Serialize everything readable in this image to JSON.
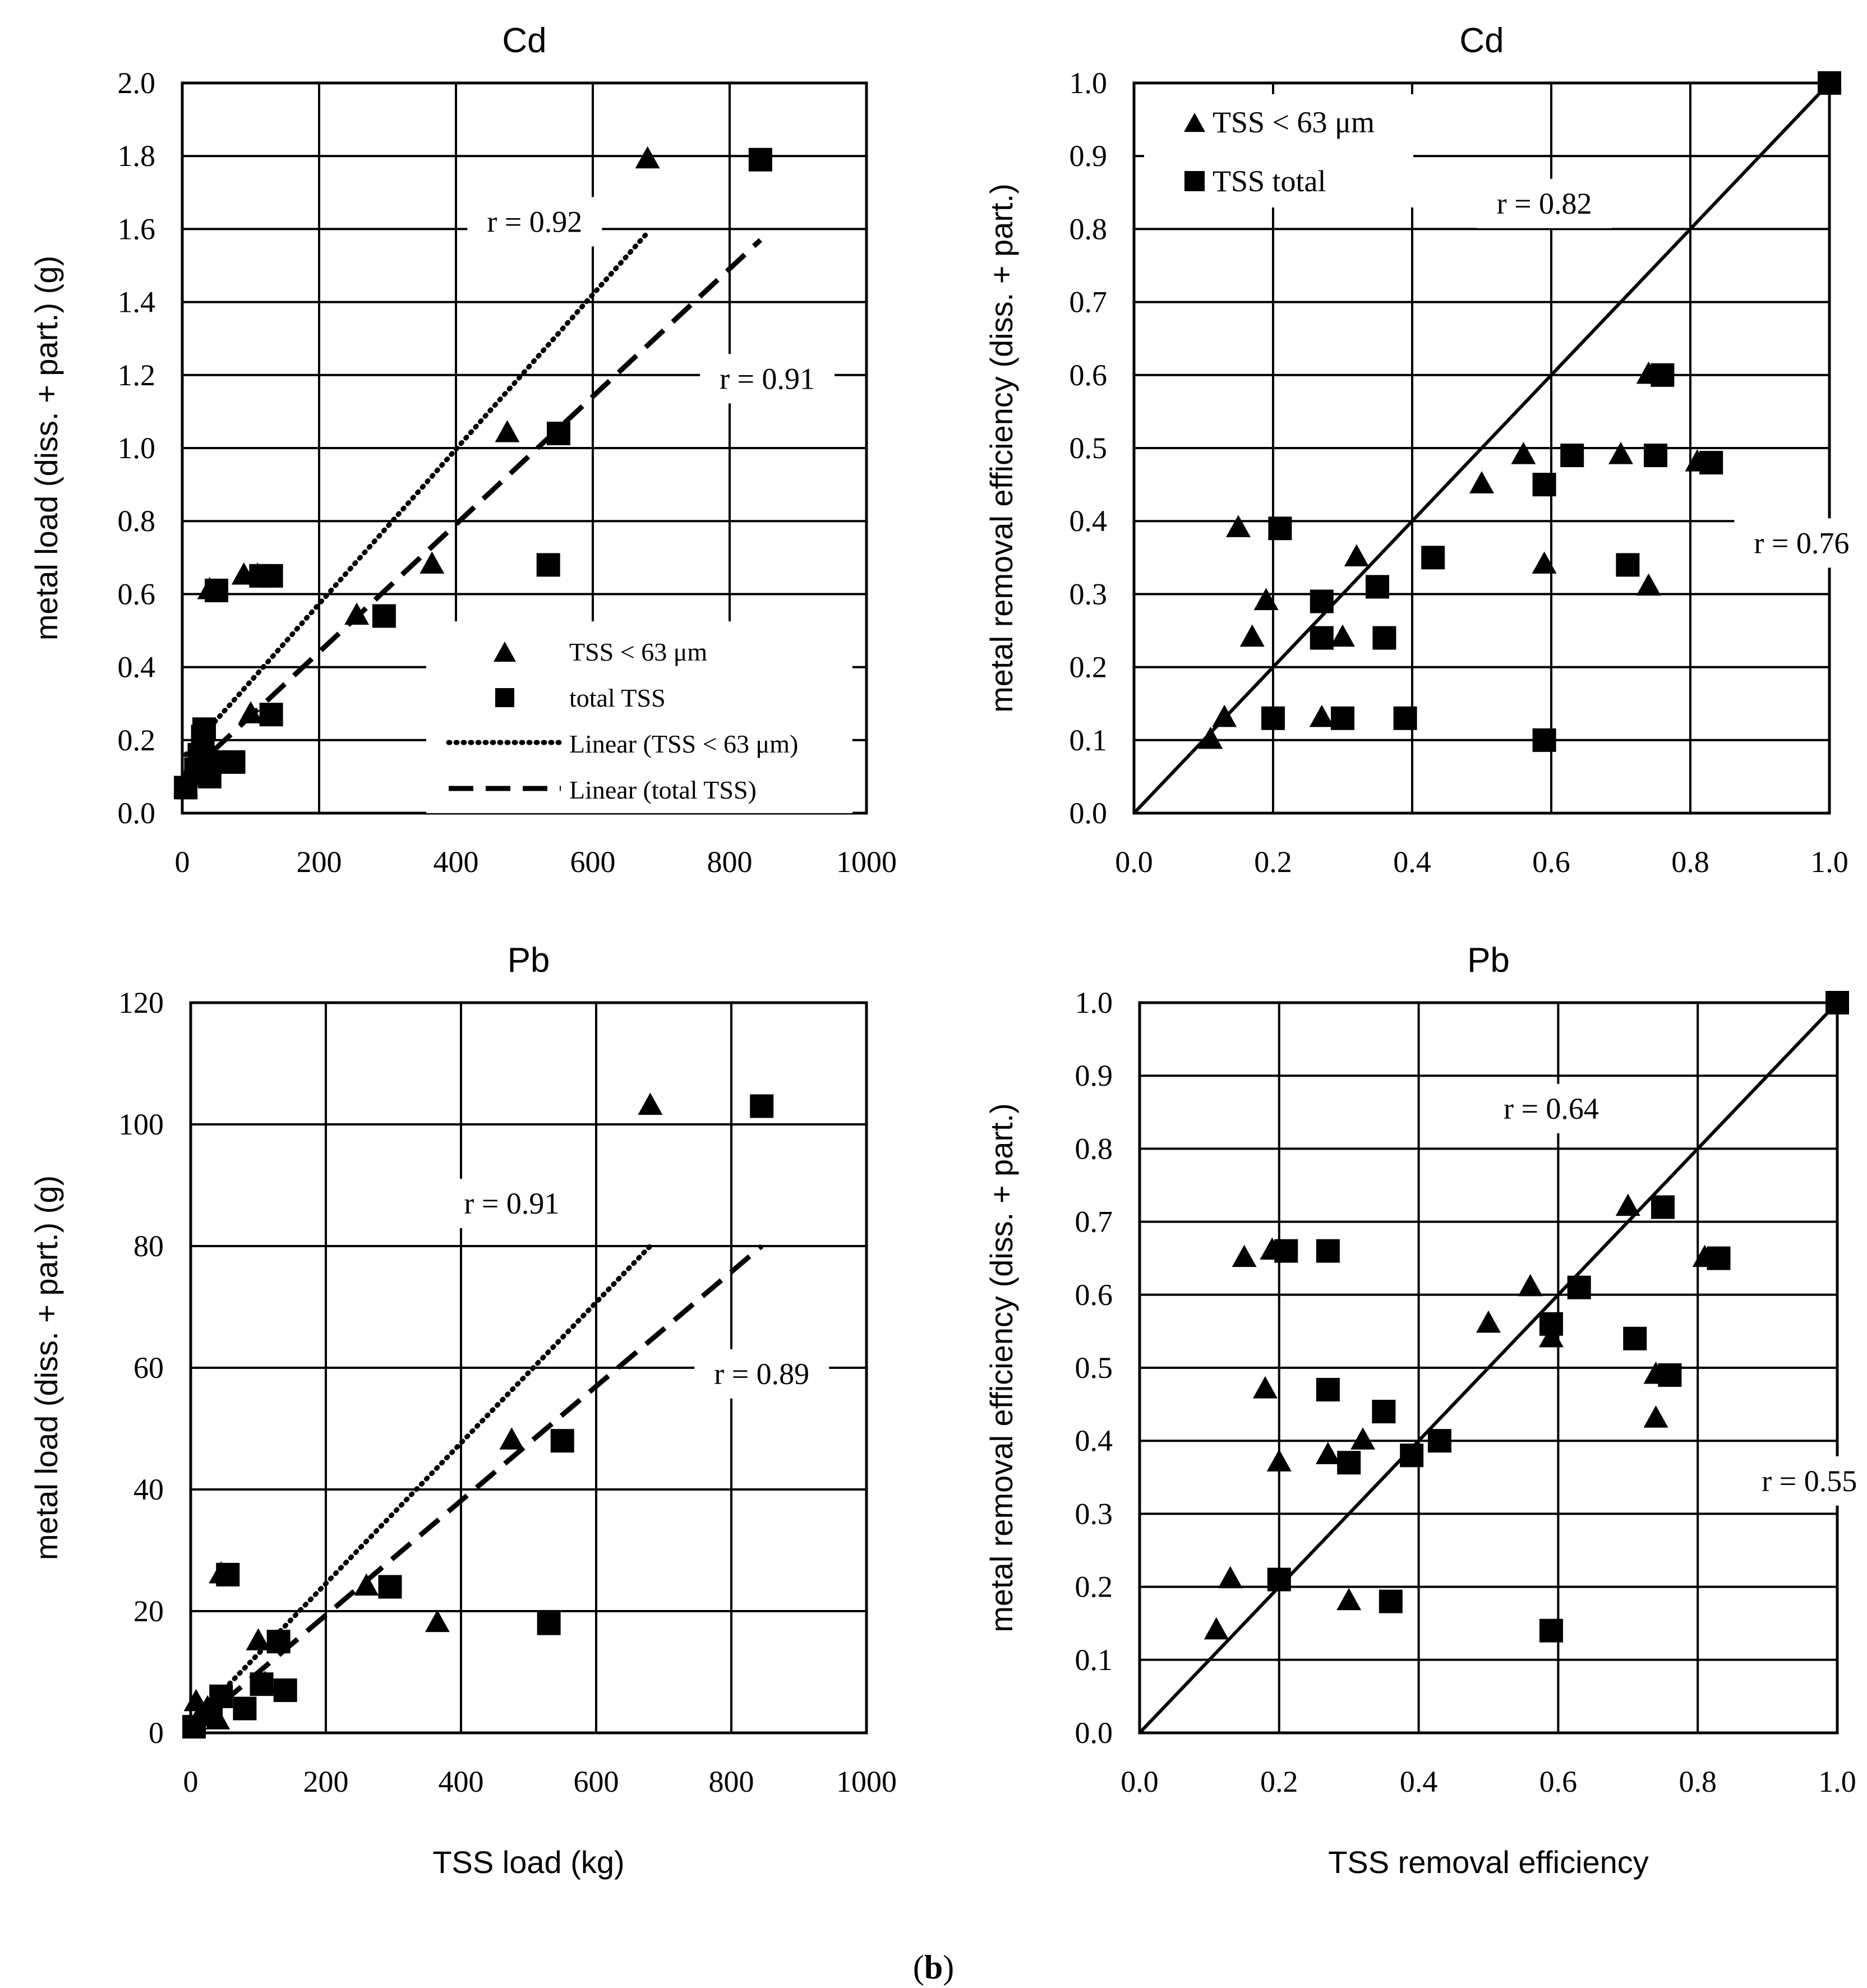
{
  "figure_label": "b",
  "chart_data": [
    {
      "id": "cd-load",
      "type": "scatter",
      "title": "Cd",
      "xlabel": "",
      "ylabel": "metal load (diss. + part.) (g)",
      "xlim": [
        0,
        1000
      ],
      "ylim": [
        0,
        2.0
      ],
      "xticks": [
        "0",
        "200",
        "400",
        "600",
        "800",
        "1000"
      ],
      "yticks": [
        "0.0",
        "0.2",
        "0.4",
        "0.6",
        "0.8",
        "1.0",
        "1.2",
        "1.4",
        "1.6",
        "1.8",
        "2.0"
      ],
      "grid": true,
      "series": [
        {
          "name": "TSS < 63 μm",
          "marker": "triangle",
          "points": [
            [
              5,
              0.07
            ],
            [
              10,
              0.1
            ],
            [
              15,
              0.12
            ],
            [
              20,
              0.14
            ],
            [
              25,
              0.16
            ],
            [
              30,
              0.19
            ],
            [
              40,
              0.61
            ],
            [
              90,
              0.65
            ],
            [
              100,
              0.27
            ],
            [
              110,
              0.65
            ],
            [
              255,
              0.54
            ],
            [
              365,
              0.68
            ],
            [
              475,
              1.04
            ],
            [
              680,
              1.79
            ]
          ]
        },
        {
          "name": "total TSS",
          "marker": "square",
          "points": [
            [
              5,
              0.07
            ],
            [
              20,
              0.12
            ],
            [
              25,
              0.16
            ],
            [
              30,
              0.21
            ],
            [
              32,
              0.23
            ],
            [
              40,
              0.1
            ],
            [
              45,
              0.14
            ],
            [
              50,
              0.61
            ],
            [
              75,
              0.14
            ],
            [
              115,
              0.65
            ],
            [
              130,
              0.65
            ],
            [
              130,
              0.27
            ],
            [
              295,
              0.54
            ],
            [
              535,
              0.68
            ],
            [
              550,
              1.04
            ],
            [
              845,
              1.79
            ]
          ]
        },
        {
          "name": "Linear (TSS < 63 μm)",
          "type": "line",
          "style": "dotted",
          "points": [
            [
              5,
              0.16
            ],
            [
              680,
              1.59
            ]
          ]
        },
        {
          "name": "Linear (total TSS)",
          "type": "line",
          "style": "dashed",
          "points": [
            [
              5,
              0.1
            ],
            [
              845,
              1.57
            ]
          ]
        }
      ],
      "annotations": [
        {
          "text": "r = 0.92",
          "x": 515,
          "y": 1.62
        },
        {
          "text": "r = 0.91",
          "x": 855,
          "y": 1.19
        }
      ],
      "legend": {
        "placement": "bottom-right",
        "entries": [
          "TSS < 63 μm",
          "total TSS",
          "Linear (TSS < 63 μm)",
          "Linear (total TSS)"
        ]
      }
    },
    {
      "id": "cd-efficiency",
      "type": "scatter",
      "title": "Cd",
      "xlabel": "",
      "ylabel": "metal removal efficiency (diss. + part.)",
      "xlim": [
        0,
        1.0
      ],
      "ylim": [
        0,
        1.0
      ],
      "xticks": [
        "0.0",
        "0.2",
        "0.4",
        "0.6",
        "0.8",
        "1.0"
      ],
      "yticks": [
        "0.0",
        "0.1",
        "0.2",
        "0.3",
        "0.4",
        "0.5",
        "0.6",
        "0.7",
        "0.8",
        "0.9",
        "1.0"
      ],
      "grid": true,
      "series": [
        {
          "name": "TSS < 63 μm",
          "marker": "triangle",
          "points": [
            [
              0.11,
              0.1
            ],
            [
              0.13,
              0.13
            ],
            [
              0.15,
              0.39
            ],
            [
              0.17,
              0.24
            ],
            [
              0.19,
              0.29
            ],
            [
              0.27,
              0.13
            ],
            [
              0.3,
              0.24
            ],
            [
              0.32,
              0.35
            ],
            [
              0.5,
              0.45
            ],
            [
              0.56,
              0.49
            ],
            [
              0.59,
              0.34
            ],
            [
              0.7,
              0.49
            ],
            [
              0.74,
              0.31
            ],
            [
              0.74,
              0.6
            ],
            [
              0.81,
              0.48
            ]
          ]
        },
        {
          "name": "TSS total",
          "marker": "square",
          "points": [
            [
              0.2,
              0.13
            ],
            [
              0.21,
              0.39
            ],
            [
              0.27,
              0.29
            ],
            [
              0.27,
              0.24
            ],
            [
              0.3,
              0.13
            ],
            [
              0.35,
              0.31
            ],
            [
              0.36,
              0.24
            ],
            [
              0.39,
              0.13
            ],
            [
              0.43,
              0.35
            ],
            [
              0.59,
              0.45
            ],
            [
              0.59,
              0.1
            ],
            [
              0.63,
              0.49
            ],
            [
              0.71,
              0.34
            ],
            [
              0.75,
              0.49
            ],
            [
              0.76,
              0.6
            ],
            [
              0.83,
              0.48
            ],
            [
              1.0,
              1.0
            ]
          ]
        },
        {
          "name": "1:1 line",
          "type": "line",
          "style": "solid",
          "points": [
            [
              0,
              0
            ],
            [
              1,
              1
            ]
          ]
        }
      ],
      "annotations": [
        {
          "text": "r = 0.82",
          "x": 0.59,
          "y": 0.835
        },
        {
          "text": "r = 0.76",
          "x": 0.96,
          "y": 0.37
        }
      ],
      "legend": {
        "placement": "top-left",
        "entries": [
          "TSS < 63 μm",
          "TSS total"
        ]
      }
    },
    {
      "id": "pb-load",
      "type": "scatter",
      "title": "Pb",
      "xlabel": "TSS load (kg)",
      "ylabel": "metal load (diss. + part.) (g)",
      "xlim": [
        0,
        1000
      ],
      "ylim": [
        0,
        120
      ],
      "xticks": [
        "0",
        "200",
        "400",
        "600",
        "800",
        "1000"
      ],
      "yticks": [
        "0",
        "20",
        "40",
        "60",
        "80",
        "100",
        "120"
      ],
      "grid": true,
      "series": [
        {
          "name": "TSS < 63 μm",
          "marker": "triangle",
          "points": [
            [
              8,
              5
            ],
            [
              15,
              3
            ],
            [
              25,
              4
            ],
            [
              40,
              2
            ],
            [
              45,
              26
            ],
            [
              100,
              15
            ],
            [
              110,
              8
            ],
            [
              260,
              24
            ],
            [
              365,
              18
            ],
            [
              475,
              48
            ],
            [
              680,
              103
            ]
          ]
        },
        {
          "name": "total TSS",
          "marker": "square",
          "points": [
            [
              5,
              1
            ],
            [
              30,
              3
            ],
            [
              45,
              6
            ],
            [
              55,
              26
            ],
            [
              80,
              4
            ],
            [
              105,
              8
            ],
            [
              130,
              15
            ],
            [
              140,
              7
            ],
            [
              295,
              24
            ],
            [
              530,
              18
            ],
            [
              550,
              48
            ],
            [
              845,
              103
            ]
          ]
        },
        {
          "name": "Linear (TSS < 63 μm)",
          "type": "line",
          "style": "dotted",
          "points": [
            [
              5,
              2
            ],
            [
              680,
              80
            ]
          ]
        },
        {
          "name": "Linear (total TSS)",
          "type": "line",
          "style": "dashed",
          "points": [
            [
              5,
              1
            ],
            [
              845,
              80
            ]
          ]
        }
      ],
      "annotations": [
        {
          "text": "r = 0.91",
          "x": 475,
          "y": 87
        },
        {
          "text": "r = 0.89",
          "x": 845,
          "y": 59
        }
      ]
    },
    {
      "id": "pb-efficiency",
      "type": "scatter",
      "title": "Pb",
      "xlabel": "TSS removal efficiency",
      "ylabel": "metal removal efficiency (diss. + part.)",
      "xlim": [
        0,
        1.0
      ],
      "ylim": [
        0,
        1.0
      ],
      "xticks": [
        "0.0",
        "0.2",
        "0.4",
        "0.6",
        "0.8",
        "1.0"
      ],
      "yticks": [
        "0.0",
        "0.1",
        "0.2",
        "0.3",
        "0.4",
        "0.5",
        "0.6",
        "0.7",
        "0.8",
        "0.9",
        "1.0"
      ],
      "grid": true,
      "series": [
        {
          "name": "TSS < 63 μm",
          "marker": "triangle",
          "points": [
            [
              0.11,
              0.14
            ],
            [
              0.13,
              0.21
            ],
            [
              0.15,
              0.65
            ],
            [
              0.18,
              0.47
            ],
            [
              0.19,
              0.66
            ],
            [
              0.2,
              0.37
            ],
            [
              0.27,
              0.38
            ],
            [
              0.3,
              0.18
            ],
            [
              0.32,
              0.4
            ],
            [
              0.5,
              0.56
            ],
            [
              0.56,
              0.61
            ],
            [
              0.59,
              0.54
            ],
            [
              0.7,
              0.72
            ],
            [
              0.74,
              0.43
            ],
            [
              0.74,
              0.49
            ],
            [
              0.81,
              0.65
            ]
          ]
        },
        {
          "name": "TSS total",
          "marker": "square",
          "points": [
            [
              0.2,
              0.21
            ],
            [
              0.21,
              0.66
            ],
            [
              0.27,
              0.66
            ],
            [
              0.27,
              0.47
            ],
            [
              0.3,
              0.37
            ],
            [
              0.35,
              0.44
            ],
            [
              0.36,
              0.18
            ],
            [
              0.39,
              0.38
            ],
            [
              0.43,
              0.4
            ],
            [
              0.59,
              0.56
            ],
            [
              0.59,
              0.14
            ],
            [
              0.63,
              0.61
            ],
            [
              0.71,
              0.54
            ],
            [
              0.75,
              0.72
            ],
            [
              0.76,
              0.49
            ],
            [
              0.83,
              0.65
            ],
            [
              1.0,
              1.0
            ]
          ]
        },
        {
          "name": "1:1 line",
          "type": "line",
          "style": "solid",
          "points": [
            [
              0,
              0
            ],
            [
              1,
              1
            ]
          ]
        }
      ],
      "annotations": [
        {
          "text": "r = 0.64",
          "x": 0.59,
          "y": 0.855
        },
        {
          "text": "r = 0.55",
          "x": 0.96,
          "y": 0.345
        }
      ]
    }
  ]
}
